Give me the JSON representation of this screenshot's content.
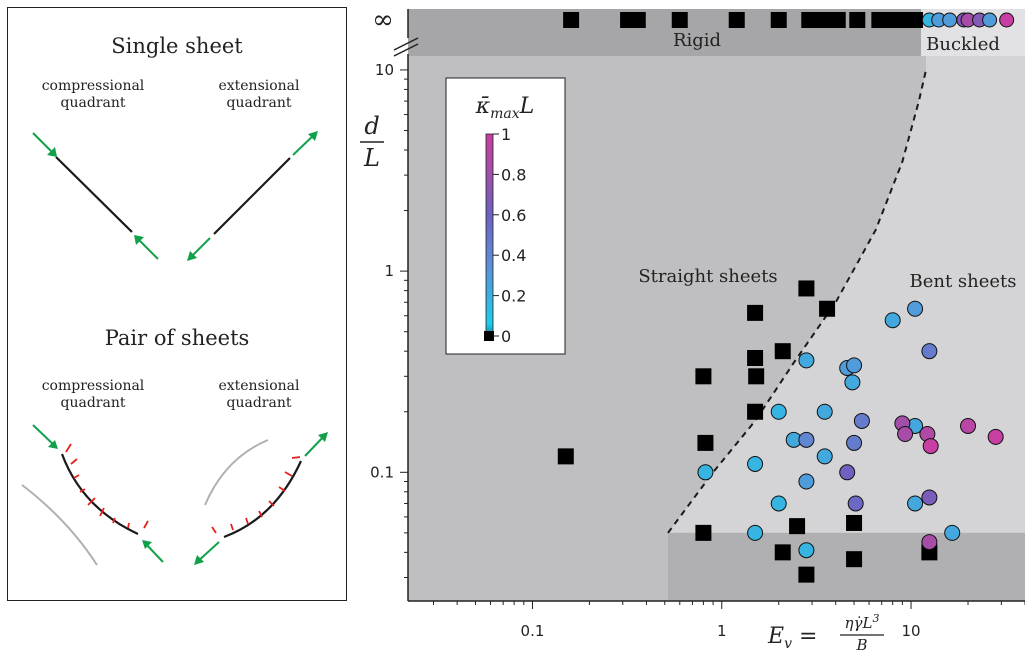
{
  "left_panel": {
    "single": {
      "title": "Single sheet",
      "comp_label": [
        "compressional",
        "quadrant"
      ],
      "ext_label": [
        "extensional",
        "quadrant"
      ]
    },
    "pair": {
      "title": "Pair of sheets",
      "comp_label": [
        "compressional",
        "quadrant"
      ],
      "ext_label": [
        "extensional",
        "quadrant"
      ]
    }
  },
  "colors": {
    "bg_region": "#bfbfc1",
    "bent_region": "#d4d4d6",
    "rigid_band": "#a6a6a8",
    "buckled_band": "#e2e2e4",
    "bottom_band": "#b0b0b2",
    "sheet": "#1a1a1a",
    "flow_arrow": "#12a14a",
    "force_arrow": "#e8201c",
    "ghost_sheet": "#b0b0b0",
    "colormap": [
      "#000000",
      "#1ccdea",
      "#5d8fd6",
      "#7060c0",
      "#a050a8",
      "#c83fa3"
    ]
  },
  "chart_data": {
    "type": "scatter",
    "x_scale": "log",
    "y_scale": "log",
    "xlim": [
      0.022,
      40
    ],
    "ylim": [
      0.024,
      12
    ],
    "x_ticks": [
      {
        "v": 0.1,
        "label": "0.1"
      },
      {
        "v": 1,
        "label": "1"
      },
      {
        "v": 10,
        "label": "10"
      }
    ],
    "y_ticks": [
      {
        "v": 0.1,
        "label": "0.1"
      },
      {
        "v": 1,
        "label": "1"
      },
      {
        "v": 10,
        "label": "10"
      }
    ],
    "infinity_label": "∞",
    "xlabel": "E_v = ηγ̇L³ / B",
    "ylabel": "d / L",
    "region_labels": {
      "rigid": "Rigid",
      "buckled": "Buckled",
      "straight": "Straight sheets",
      "bent": "Bent sheets"
    },
    "colorbar": {
      "title": "κ̄_max L",
      "ticks": [
        "0",
        "0.2",
        "0.4",
        "0.6",
        "0.8",
        "1"
      ]
    },
    "boundary_curve": [
      [
        0.52,
        0.05
      ],
      [
        0.9,
        0.1
      ],
      [
        1.5,
        0.18
      ],
      [
        2.4,
        0.35
      ],
      [
        4,
        0.7
      ],
      [
        6.5,
        1.6
      ],
      [
        9,
        3.5
      ],
      [
        11,
        7
      ],
      [
        12,
        10
      ]
    ],
    "rigid_points_x": [
      0.16,
      0.32,
      0.36,
      0.6,
      1.2,
      2.0,
      2.9,
      3.3,
      3.8,
      4.1,
      5.2,
      6.8,
      7.5,
      8.8,
      10.5
    ],
    "buckled_points": [
      [
        12.5,
        0.1
      ],
      [
        14,
        0.2
      ],
      [
        16,
        0.2
      ],
      [
        19,
        0.6
      ],
      [
        20,
        0.8
      ],
      [
        23,
        0.6
      ],
      [
        26,
        0.2
      ],
      [
        32,
        1.0
      ]
    ],
    "squares": [
      [
        0.15,
        0.12
      ],
      [
        0.8,
        0.3
      ],
      [
        0.82,
        0.14
      ],
      [
        0.8,
        0.05
      ],
      [
        1.5,
        0.62
      ],
      [
        1.5,
        0.37
      ],
      [
        1.52,
        0.3
      ],
      [
        1.5,
        0.2
      ],
      [
        2.1,
        0.4
      ],
      [
        2.8,
        0.82
      ],
      [
        3.6,
        0.65
      ],
      [
        2.1,
        0.04
      ],
      [
        2.5,
        0.054
      ],
      [
        2.8,
        0.031
      ],
      [
        5,
        0.056
      ],
      [
        5,
        0.037
      ],
      [
        12.5,
        0.04
      ]
    ],
    "circles": [
      [
        0.82,
        0.1,
        0.1
      ],
      [
        1.5,
        0.11,
        0.1
      ],
      [
        1.5,
        0.05,
        0.1
      ],
      [
        2.0,
        0.2,
        0.1
      ],
      [
        2.0,
        0.07,
        0.1
      ],
      [
        2.8,
        0.36,
        0.15
      ],
      [
        2.4,
        0.145,
        0.15
      ],
      [
        2.8,
        0.145,
        0.3
      ],
      [
        2.8,
        0.09,
        0.2
      ],
      [
        2.8,
        0.041,
        0.1
      ],
      [
        3.5,
        0.2,
        0.15
      ],
      [
        3.5,
        0.12,
        0.15
      ],
      [
        4.6,
        0.33,
        0.2
      ],
      [
        5.0,
        0.34,
        0.2
      ],
      [
        4.9,
        0.28,
        0.15
      ],
      [
        5.5,
        0.18,
        0.35
      ],
      [
        5.0,
        0.14,
        0.35
      ],
      [
        4.6,
        0.1,
        0.5
      ],
      [
        5.1,
        0.07,
        0.45
      ],
      [
        8.0,
        0.57,
        0.15
      ],
      [
        10.5,
        0.65,
        0.2
      ],
      [
        12.5,
        0.4,
        0.35
      ],
      [
        10.5,
        0.17,
        0.15
      ],
      [
        9.0,
        0.175,
        0.75
      ],
      [
        9.3,
        0.155,
        0.8
      ],
      [
        12.2,
        0.155,
        0.85
      ],
      [
        12.7,
        0.135,
        1.0
      ],
      [
        20,
        0.17,
        0.9
      ],
      [
        28,
        0.15,
        1.0
      ],
      [
        10.5,
        0.07,
        0.15
      ],
      [
        12.5,
        0.075,
        0.55
      ],
      [
        12.5,
        0.045,
        0.8
      ],
      [
        16.5,
        0.05,
        0.15
      ]
    ]
  }
}
